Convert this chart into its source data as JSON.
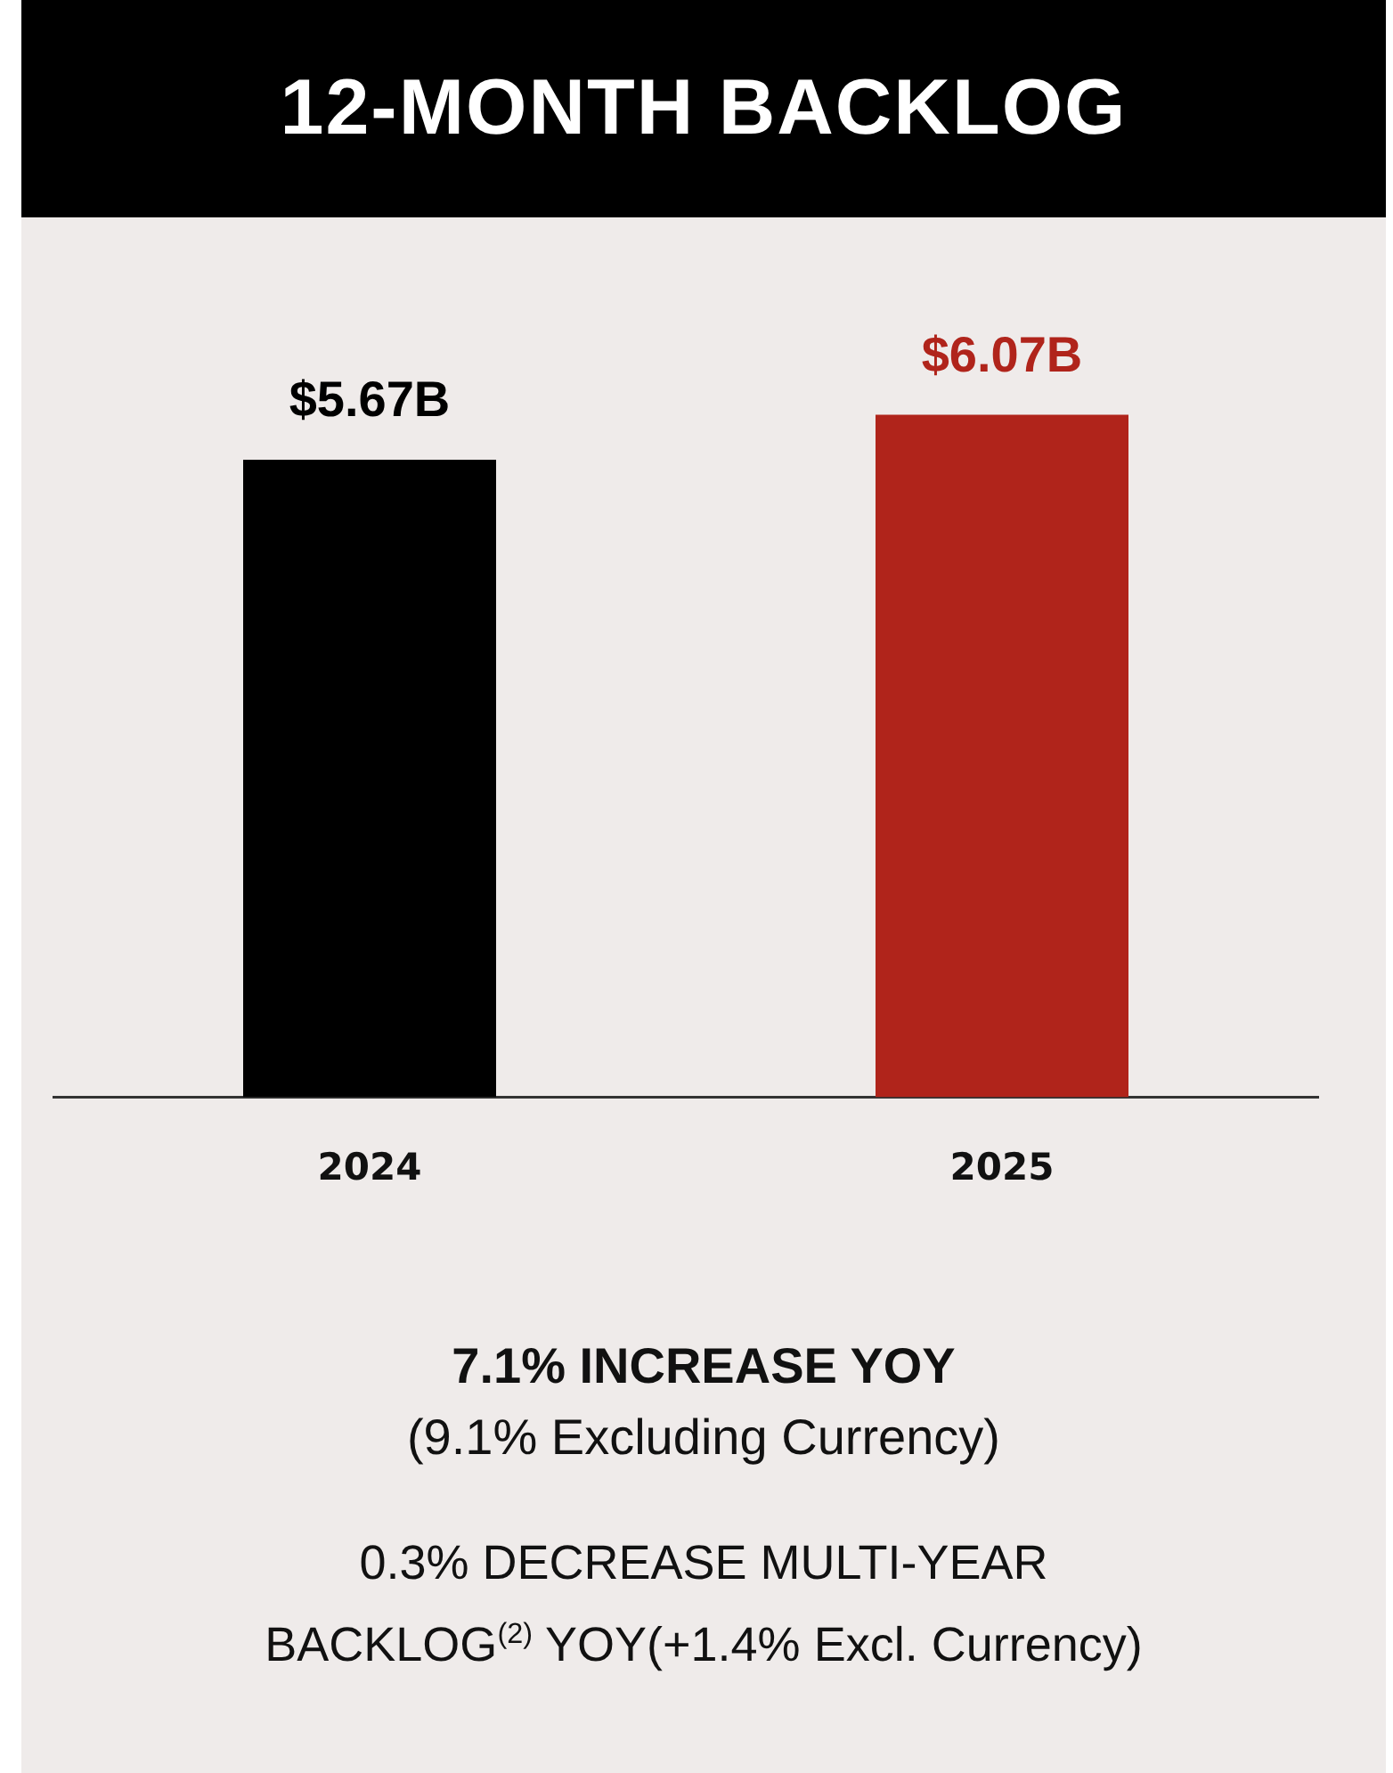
{
  "chart_data": {
    "type": "bar",
    "title": "12-MONTH BACKLOG",
    "categories": [
      "2024",
      "2025"
    ],
    "values": [
      5.67,
      6.07
    ],
    "colors": [
      "#000000",
      "#b0241b"
    ],
    "value_labels": [
      "$5.67B",
      "$6.07B"
    ],
    "tick_labels": "x",
    "grid": false,
    "legend": false,
    "annotations": [
      "7.1% INCREASE YOY",
      "(9.1% Excluding Currency)",
      "0.3% DECREASE  MULTI-YEAR BACKLOG$^{(2)}$ YOY(+1.4% Excl. Currency)"
    ]
  }
}
